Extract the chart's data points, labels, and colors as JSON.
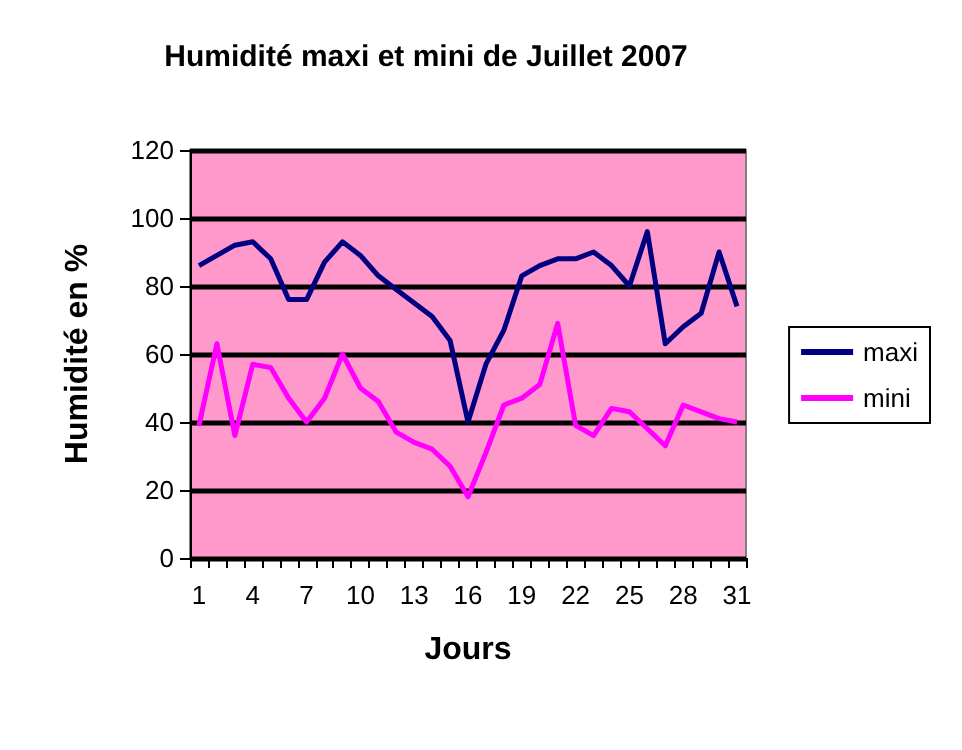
{
  "chart_data": {
    "type": "line",
    "title": "Humidité maxi et mini de Juillet 2007",
    "xlabel": "Jours",
    "ylabel": "Humidité en %",
    "categories": [
      "1",
      null,
      null,
      "4",
      null,
      null,
      "7",
      null,
      null,
      "10",
      null,
      null,
      "13",
      null,
      null,
      "16",
      null,
      null,
      "19",
      null,
      null,
      "22",
      null,
      null,
      "25",
      null,
      null,
      "28",
      null,
      null,
      "31"
    ],
    "series": [
      {
        "name": "maxi",
        "color": "#000080",
        "values": [
          86,
          89,
          92,
          93,
          88,
          76,
          76,
          87,
          93,
          89,
          83,
          79,
          75,
          71,
          64,
          40,
          57,
          67,
          83,
          86,
          88,
          88,
          90,
          86,
          80,
          96,
          63,
          68,
          72,
          90,
          74
        ]
      },
      {
        "name": "mini",
        "color": "#ff00ff",
        "values": [
          39,
          63,
          36,
          57,
          56,
          47,
          40,
          47,
          60,
          50,
          46,
          37,
          34,
          32,
          27,
          18,
          31,
          45,
          47,
          51,
          69,
          39,
          36,
          44,
          43,
          38,
          33,
          45,
          43,
          41,
          40
        ]
      }
    ],
    "ylim": [
      0,
      120
    ],
    "yticks": [
      0,
      20,
      40,
      60,
      80,
      100,
      120
    ],
    "grid": "y",
    "legend": "right",
    "marker": "none",
    "line_style": "solid"
  }
}
